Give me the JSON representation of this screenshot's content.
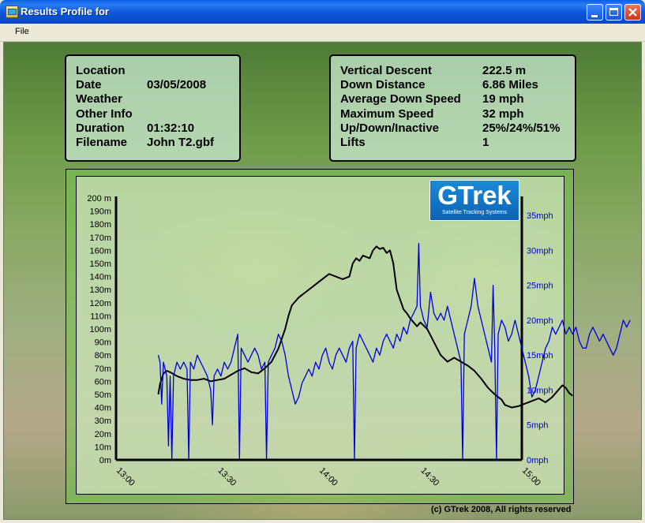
{
  "window": {
    "title": "Results Profile for",
    "menu": [
      "File"
    ]
  },
  "info_left": [
    {
      "label": "Location",
      "value": ""
    },
    {
      "label": "Date",
      "value": "03/05/2008"
    },
    {
      "label": "Weather",
      "value": ""
    },
    {
      "label": "Other Info",
      "value": ""
    },
    {
      "label": "Duration",
      "value": "01:32:10"
    },
    {
      "label": "Filename",
      "value": "John T2.gbf"
    }
  ],
  "info_right": [
    {
      "label": "Vertical Descent",
      "value": "222.5 m"
    },
    {
      "label": "Down Distance",
      "value": "6.86 Miles"
    },
    {
      "label": "Average Down Speed",
      "value": "19 mph"
    },
    {
      "label": "Maximum Speed",
      "value": "32 mph"
    },
    {
      "label": "Up/Down/Inactive",
      "value": "25%/24%/51%"
    },
    {
      "label": "Lifts",
      "value": "1"
    }
  ],
  "logo": {
    "main": "GTrek",
    "sub": "Satellite Tracking Systems"
  },
  "copyright": "(c) GTrek 2008, All rights reserved",
  "colors": {
    "altitude_line": "#000000",
    "speed_line": "#0000d8",
    "title_bar": "#0a5fe8"
  },
  "chart_data": {
    "type": "line",
    "x_ticks": [
      "13:00",
      "13:30",
      "14:00",
      "14:30",
      "15:00"
    ],
    "x_range_minutes": [
      0,
      120
    ],
    "y_left_ticks": [
      "0m",
      "10m",
      "20m",
      "30m",
      "40m",
      "50m",
      "60m",
      "70m",
      "80m",
      "90m",
      "100m",
      "110m",
      "120m",
      "130m",
      "140m",
      "150m",
      "160m",
      "170m",
      "180m",
      "190m",
      "200 m"
    ],
    "y_left_range": [
      0,
      200
    ],
    "y_right_ticks": [
      "0mph",
      "5mph",
      "10mph",
      "15mph",
      "20mph",
      "25mph",
      "30mph",
      "35mph"
    ],
    "y_right_range": [
      0,
      37.5
    ],
    "series": [
      {
        "axis": "left",
        "points": [
          [
            12.5,
            50
          ],
          [
            13,
            58
          ],
          [
            14,
            66
          ],
          [
            15,
            68
          ],
          [
            16,
            67
          ],
          [
            18,
            64
          ],
          [
            20,
            62
          ],
          [
            22,
            61
          ],
          [
            24,
            61
          ],
          [
            26,
            62
          ],
          [
            28,
            60
          ],
          [
            30,
            61
          ],
          [
            32,
            62
          ],
          [
            34,
            65
          ],
          [
            36,
            68
          ],
          [
            38,
            70
          ],
          [
            40,
            67
          ],
          [
            42,
            66
          ],
          [
            44,
            70
          ],
          [
            46,
            75
          ],
          [
            48,
            85
          ],
          [
            50,
            100
          ],
          [
            51,
            110
          ],
          [
            52,
            118
          ],
          [
            54,
            124
          ],
          [
            56,
            128
          ],
          [
            58,
            132
          ],
          [
            60,
            136
          ],
          [
            62,
            140
          ],
          [
            63,
            142
          ],
          [
            65,
            140
          ],
          [
            67,
            138
          ],
          [
            69,
            140
          ],
          [
            70,
            150
          ],
          [
            71,
            154
          ],
          [
            72,
            152
          ],
          [
            73,
            156
          ],
          [
            74,
            155
          ],
          [
            75,
            154
          ],
          [
            76,
            160
          ],
          [
            77,
            163
          ],
          [
            78,
            161
          ],
          [
            79,
            162
          ],
          [
            80,
            158
          ],
          [
            81,
            160
          ],
          [
            82,
            150
          ],
          [
            83,
            130
          ],
          [
            85,
            115
          ],
          [
            86,
            112
          ],
          [
            87,
            108
          ],
          [
            88,
            105
          ],
          [
            89,
            102
          ],
          [
            90,
            105
          ],
          [
            92,
            100
          ],
          [
            93,
            95
          ],
          [
            94,
            90
          ],
          [
            95,
            85
          ],
          [
            96,
            80
          ],
          [
            98,
            75
          ],
          [
            100,
            78
          ],
          [
            102,
            75
          ],
          [
            104,
            72
          ],
          [
            106,
            68
          ],
          [
            108,
            62
          ],
          [
            110,
            55
          ],
          [
            112,
            50
          ],
          [
            114,
            46
          ],
          [
            115,
            42
          ],
          [
            117,
            40
          ],
          [
            119,
            41
          ],
          [
            121,
            43
          ],
          [
            123,
            45
          ],
          [
            125,
            47
          ],
          [
            127,
            44
          ],
          [
            129,
            48
          ],
          [
            131,
            54
          ],
          [
            132,
            57
          ],
          [
            133,
            55
          ],
          [
            134,
            51
          ],
          [
            135,
            49
          ]
        ]
      },
      {
        "axis": "right",
        "points": [
          [
            12.5,
            15
          ],
          [
            13,
            14
          ],
          [
            13.5,
            8
          ],
          [
            14,
            14
          ],
          [
            15,
            12
          ],
          [
            15.5,
            2
          ],
          [
            16,
            12
          ],
          [
            16.5,
            0
          ],
          [
            17,
            12
          ],
          [
            18,
            14
          ],
          [
            19,
            13
          ],
          [
            20,
            14
          ],
          [
            21,
            13
          ],
          [
            21.5,
            0
          ],
          [
            22,
            14
          ],
          [
            23,
            13
          ],
          [
            24,
            15
          ],
          [
            25,
            14
          ],
          [
            26,
            13
          ],
          [
            27,
            12
          ],
          [
            28,
            10
          ],
          [
            28.5,
            5
          ],
          [
            29,
            12
          ],
          [
            30,
            13
          ],
          [
            31,
            12
          ],
          [
            32,
            14
          ],
          [
            33,
            13
          ],
          [
            34,
            14
          ],
          [
            35,
            16
          ],
          [
            36,
            18
          ],
          [
            36.5,
            0
          ],
          [
            37,
            16
          ],
          [
            38,
            15
          ],
          [
            39,
            14
          ],
          [
            40,
            15
          ],
          [
            41,
            16
          ],
          [
            42,
            15
          ],
          [
            43,
            13
          ],
          [
            44,
            14
          ],
          [
            44.5,
            0
          ],
          [
            45,
            14
          ],
          [
            46,
            15
          ],
          [
            47,
            16
          ],
          [
            48,
            18
          ],
          [
            49,
            17
          ],
          [
            50,
            15
          ],
          [
            51,
            12
          ],
          [
            52,
            10
          ],
          [
            53,
            8
          ],
          [
            54,
            9
          ],
          [
            55,
            11
          ],
          [
            56,
            12
          ],
          [
            57,
            13
          ],
          [
            58,
            12
          ],
          [
            59,
            14
          ],
          [
            60,
            13
          ],
          [
            61,
            15
          ],
          [
            62,
            16
          ],
          [
            63,
            14
          ],
          [
            64,
            13
          ],
          [
            65,
            15
          ],
          [
            66,
            16
          ],
          [
            67,
            15
          ],
          [
            68,
            14
          ],
          [
            69,
            16
          ],
          [
            70,
            17
          ],
          [
            70.5,
            0
          ],
          [
            71,
            16
          ],
          [
            72,
            18
          ],
          [
            73,
            17
          ],
          [
            74,
            16
          ],
          [
            75,
            15
          ],
          [
            76,
            14
          ],
          [
            77,
            16
          ],
          [
            78,
            15
          ],
          [
            79,
            17
          ],
          [
            80,
            18
          ],
          [
            81,
            17
          ],
          [
            82,
            16
          ],
          [
            83,
            18
          ],
          [
            84,
            17
          ],
          [
            85,
            19
          ],
          [
            86,
            18
          ],
          [
            87,
            20
          ],
          [
            88,
            21
          ],
          [
            89,
            22
          ],
          [
            89.5,
            31
          ],
          [
            90,
            22
          ],
          [
            91,
            20
          ],
          [
            92,
            19
          ],
          [
            93,
            24
          ],
          [
            94,
            21
          ],
          [
            95,
            20
          ],
          [
            96,
            21
          ],
          [
            97,
            20
          ],
          [
            98,
            22
          ],
          [
            99,
            20
          ],
          [
            100,
            18
          ],
          [
            101,
            16
          ],
          [
            102,
            14
          ],
          [
            102.5,
            0
          ],
          [
            103,
            18
          ],
          [
            104,
            20
          ],
          [
            105,
            22
          ],
          [
            106,
            26
          ],
          [
            107,
            22
          ],
          [
            108,
            20
          ],
          [
            109,
            18
          ],
          [
            110,
            16
          ],
          [
            111,
            14
          ],
          [
            111.5,
            25
          ],
          [
            112,
            16
          ],
          [
            112.5,
            0
          ],
          [
            113,
            18
          ],
          [
            114,
            20
          ],
          [
            115,
            19
          ],
          [
            116,
            17
          ],
          [
            117,
            18
          ],
          [
            118,
            20
          ],
          [
            119,
            18
          ],
          [
            120,
            16
          ],
          [
            121,
            14
          ],
          [
            122,
            12
          ],
          [
            123,
            9
          ],
          [
            124,
            10
          ],
          [
            125,
            12
          ],
          [
            126,
            14
          ],
          [
            127,
            16
          ],
          [
            128,
            17
          ],
          [
            129,
            19
          ],
          [
            130,
            18
          ],
          [
            131,
            19
          ],
          [
            132,
            20
          ],
          [
            133,
            18
          ],
          [
            134,
            19
          ],
          [
            135,
            18
          ],
          [
            136,
            19
          ],
          [
            137,
            17
          ],
          [
            138,
            16
          ],
          [
            139,
            16
          ],
          [
            140,
            18
          ],
          [
            141,
            19
          ],
          [
            142,
            18
          ],
          [
            143,
            17
          ],
          [
            144,
            18
          ],
          [
            145,
            17
          ],
          [
            146,
            16
          ],
          [
            147,
            15
          ],
          [
            148,
            16
          ],
          [
            149,
            18
          ],
          [
            150,
            20
          ],
          [
            151,
            19
          ],
          [
            152,
            20
          ]
        ]
      }
    ]
  }
}
